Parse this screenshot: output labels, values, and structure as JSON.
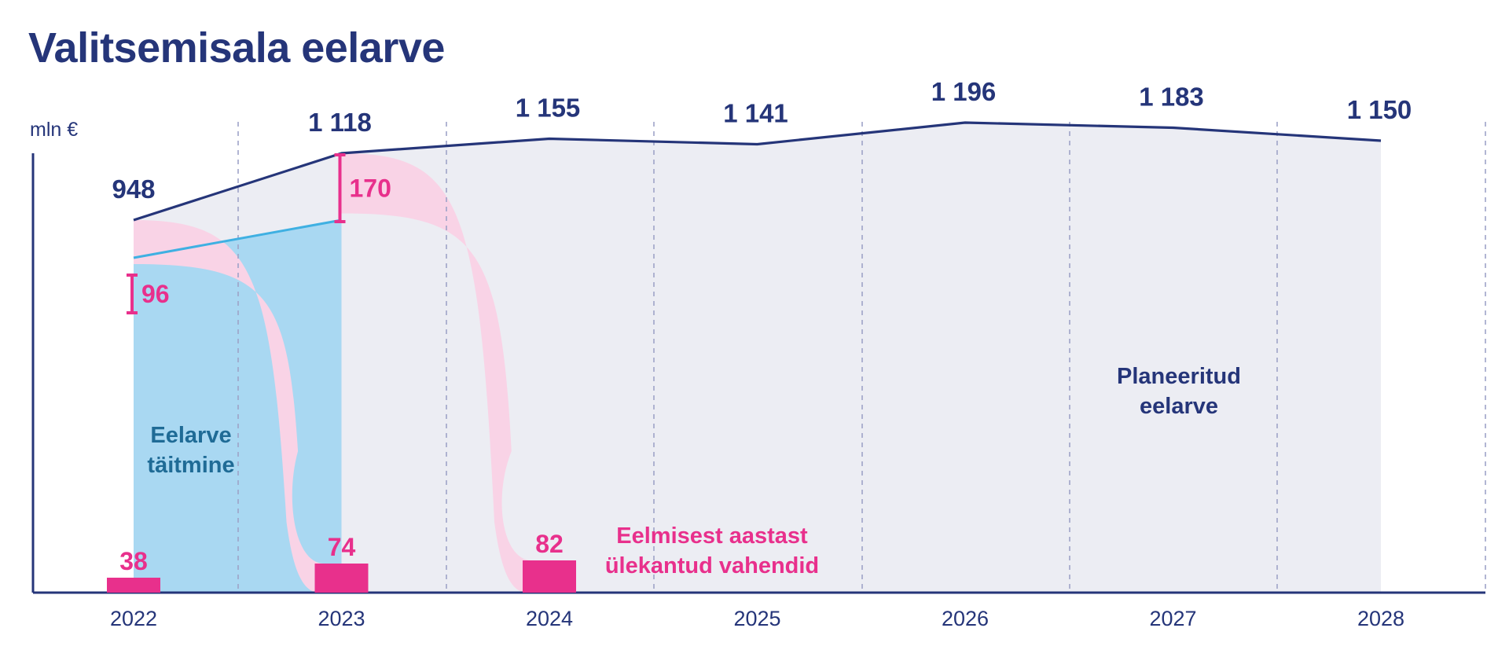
{
  "title": "Valitsemisala eelarve",
  "chart_data": {
    "type": "area",
    "unit_label": "mln €",
    "categories": [
      "2022",
      "2023",
      "2024",
      "2025",
      "2026",
      "2027",
      "2028"
    ],
    "planned_budget": {
      "name": "Planeeritud eelarve",
      "values": [
        948,
        1118,
        1155,
        1141,
        1196,
        1183,
        1150
      ],
      "labels": [
        "948",
        "1 118",
        "1 155",
        "1 141",
        "1 196",
        "1 183",
        "1 150"
      ],
      "color": "#253579",
      "fill": "#ecedf3"
    },
    "budget_execution": {
      "name": "Eelarve täitmine",
      "categories": [
        "2022",
        "2023"
      ],
      "values": [
        852,
        948
      ],
      "color": "#a9d8f2",
      "line_color": "#3fb0e2",
      "text_color": "#1f6b96"
    },
    "unspent": {
      "categories": [
        "2022",
        "2023"
      ],
      "values": [
        96,
        170
      ],
      "labels": [
        "96",
        "170"
      ],
      "color": "#e8308c",
      "flow_fill": "#f9d3e6"
    },
    "carried_over": {
      "name": "Eelmisest aastast ülekantud vahendid",
      "categories": [
        "2022",
        "2023",
        "2024"
      ],
      "values": [
        38,
        74,
        82
      ],
      "labels": [
        "38",
        "74",
        "82"
      ],
      "color": "#e8308c"
    },
    "ylim": [
      0,
      1300
    ],
    "grid": "vertical dashed",
    "annotations": {
      "planned": [
        "Planeeritud",
        "eelarve"
      ],
      "execution": [
        "Eelarve",
        "täitmine"
      ],
      "carried": [
        "Eelmisest aastast",
        "ülekantud vahendid"
      ]
    }
  }
}
